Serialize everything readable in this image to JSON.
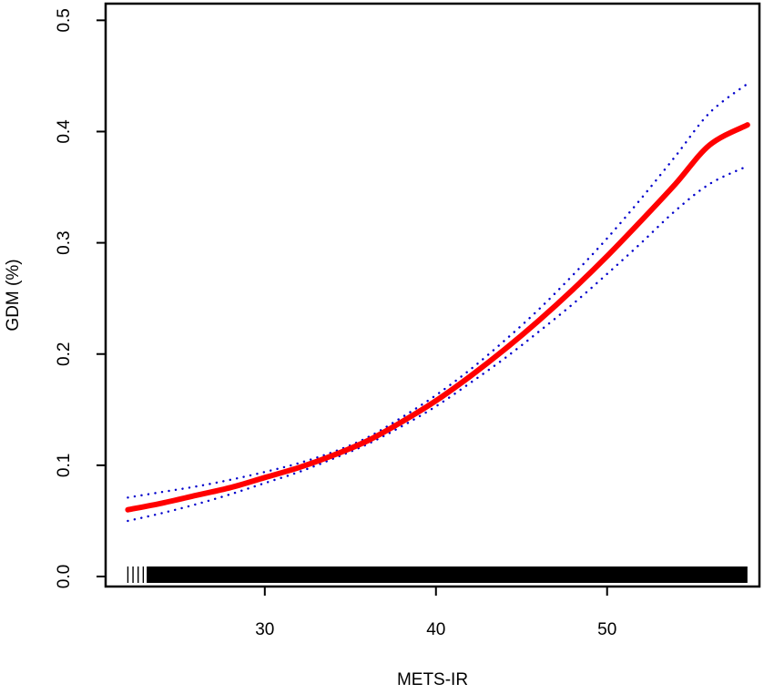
{
  "chart_data": {
    "type": "line",
    "title": "",
    "xlabel": "METS-IR",
    "ylabel": "GDM (%)",
    "xlim": [
      20.7,
      58.9
    ],
    "ylim": [
      -0.009,
      0.515
    ],
    "x_ticks": [
      30,
      40,
      50
    ],
    "x_tick_labels": [
      "30",
      "40",
      "50"
    ],
    "y_ticks": [
      0.0,
      0.1,
      0.2,
      0.3,
      0.4,
      0.5
    ],
    "y_tick_labels": [
      "0.0",
      "0.1",
      "0.2",
      "0.3",
      "0.4",
      "0.5"
    ],
    "grid": false,
    "series": [
      {
        "role": "estimate",
        "color": "#ff0000",
        "line_style": "solid",
        "x": [
          22,
          24,
          26,
          28,
          30,
          32,
          34,
          36,
          38,
          40,
          42,
          44,
          46,
          48,
          50,
          52,
          54,
          56,
          58.2
        ],
        "y": [
          0.06,
          0.066,
          0.073,
          0.08,
          0.089,
          0.098,
          0.109,
          0.122,
          0.139,
          0.158,
          0.18,
          0.204,
          0.23,
          0.258,
          0.288,
          0.32,
          0.353,
          0.388,
          0.406
        ]
      },
      {
        "role": "upper-ci",
        "color": "#0000cc",
        "line_style": "dotted",
        "x": [
          22,
          24,
          26,
          28,
          30,
          32,
          34,
          36,
          38,
          40,
          42,
          44,
          46,
          48,
          50,
          52,
          54,
          56,
          58.2
        ],
        "y": [
          0.071,
          0.076,
          0.081,
          0.087,
          0.094,
          0.102,
          0.112,
          0.125,
          0.143,
          0.163,
          0.186,
          0.212,
          0.24,
          0.271,
          0.304,
          0.34,
          0.378,
          0.417,
          0.443
        ]
      },
      {
        "role": "lower-ci",
        "color": "#0000cc",
        "line_style": "dotted",
        "x": [
          22,
          24,
          26,
          28,
          30,
          32,
          34,
          36,
          38,
          40,
          42,
          44,
          46,
          48,
          50,
          52,
          54,
          56,
          58.2
        ],
        "y": [
          0.05,
          0.057,
          0.065,
          0.074,
          0.084,
          0.094,
          0.106,
          0.119,
          0.135,
          0.153,
          0.174,
          0.196,
          0.22,
          0.245,
          0.272,
          0.3,
          0.329,
          0.353,
          0.369
        ]
      }
    ],
    "rug": {
      "color": "#000000",
      "sparse_x": [
        22.0,
        22.3,
        22.6,
        22.9
      ],
      "dense_range": [
        23.1,
        58.2
      ]
    }
  }
}
